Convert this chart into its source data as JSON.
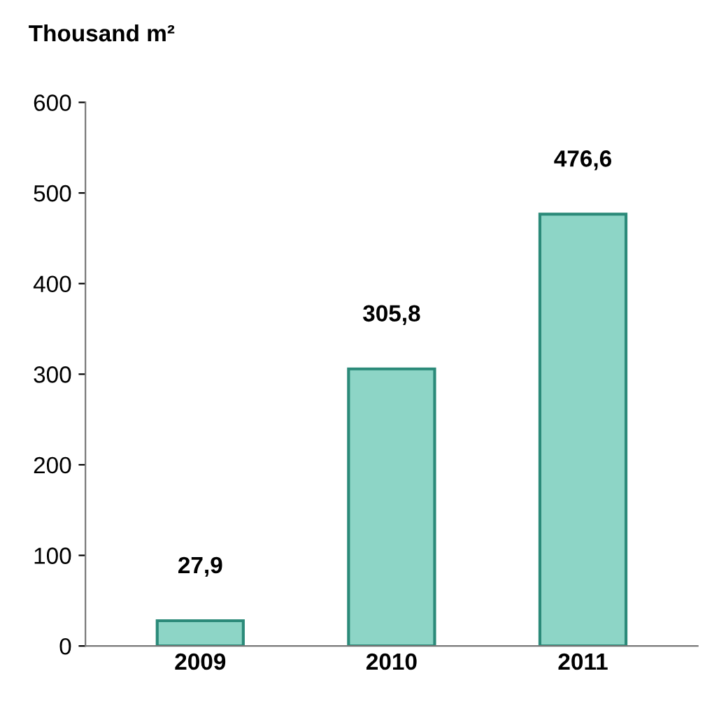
{
  "chart_data": {
    "type": "bar",
    "ylabel": "Thousand m²",
    "categories": [
      "2009",
      "2010",
      "2011"
    ],
    "values": [
      27.9,
      305.8,
      476.6
    ],
    "value_labels": [
      "27,9",
      "305,8",
      "476,6"
    ],
    "color": "#8dd5c6",
    "ylim": [
      0,
      600
    ],
    "yticks": [
      0,
      100,
      200,
      300,
      400,
      500,
      600
    ],
    "grid": false,
    "legend": false
  }
}
